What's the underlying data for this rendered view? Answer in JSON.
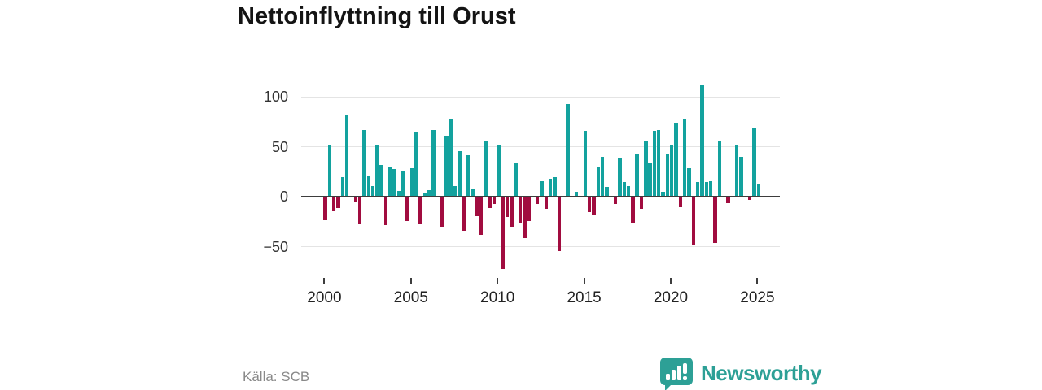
{
  "header": {
    "title": "Nettoinflyttning till Orust"
  },
  "footer": {
    "source": "Källa: SCB",
    "brand": "Newsworthy",
    "brand_color": "#2da096"
  },
  "icons": {
    "logo": "newsworthy-bar-chart-speech-bubble"
  },
  "chart_data": {
    "type": "bar",
    "title": "Nettoinflyttning till Orust",
    "frequency": "quarterly",
    "x_start": "2000-Q1",
    "x_end": "2025-Q1",
    "values": [
      -23,
      52,
      -14,
      -11,
      20,
      81,
      0,
      -5,
      -27,
      67,
      21,
      11,
      51,
      32,
      -28,
      30,
      28,
      6,
      26,
      -24,
      29,
      64,
      -27,
      4,
      7,
      67,
      0,
      -30,
      61,
      77,
      11,
      46,
      -34,
      42,
      8,
      -19,
      -38,
      55,
      -11,
      -7,
      52,
      -72,
      -20,
      -30,
      34,
      -26,
      -41,
      -24,
      0,
      -7,
      16,
      -12,
      18,
      20,
      -54,
      0,
      93,
      0,
      5,
      0,
      66,
      -15,
      -18,
      30,
      40,
      10,
      0,
      -7,
      38,
      15,
      11,
      -26,
      43,
      -12,
      55,
      34,
      66,
      67,
      5,
      43,
      52,
      74,
      -10,
      77,
      29,
      -48,
      15,
      112,
      15,
      16,
      -46,
      55,
      0,
      -6,
      0,
      51,
      40,
      0,
      -3,
      69,
      13
    ],
    "x_ticks": [
      "2000",
      "2005",
      "2010",
      "2015",
      "2020",
      "2025"
    ],
    "y_ticks": [
      100,
      50,
      0,
      -50
    ],
    "ylim": [
      -80,
      115
    ],
    "grid": true,
    "legend": "none",
    "colors": {
      "positive": "#13a29e",
      "negative": "#a10c3f",
      "gridline": "#e4e4e4",
      "axis": "#3d3d3d"
    }
  }
}
